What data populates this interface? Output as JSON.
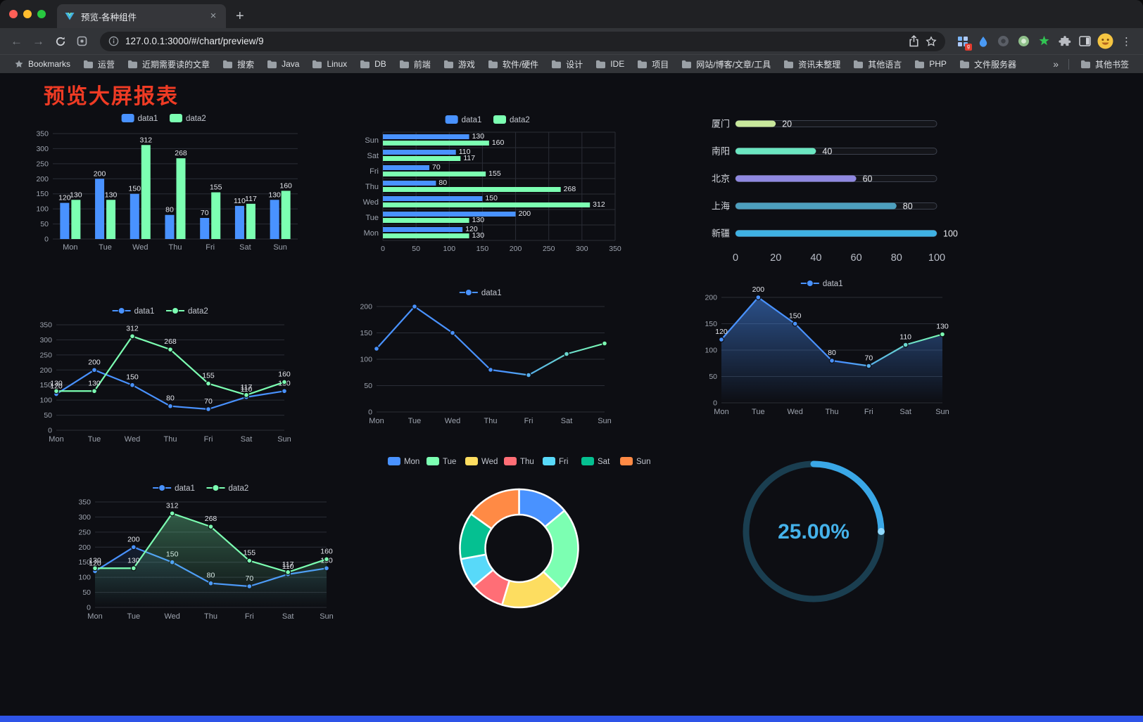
{
  "browser": {
    "tab": {
      "title": "预览-各种组件",
      "close_glyph": "×",
      "new_tab_glyph": "+"
    },
    "toolbar": {
      "back_glyph": "←",
      "forward_glyph": "→",
      "url": "127.0.0.1:3000/#/chart/preview/9",
      "menu_glyph": "⋮",
      "extension_badge": "g"
    },
    "bookmarks_bar": {
      "root_label": "Bookmarks",
      "folders": [
        "运营",
        "近期需要读的文章",
        "搜索",
        "Java",
        "Linux",
        "DB",
        "前端",
        "游戏",
        "软件/硬件",
        "设计",
        "IDE",
        "项目",
        "网站/博客/文章/工具",
        "资讯未整理",
        "其他语言",
        "PHP",
        "文件服务器"
      ],
      "overflow_glyph": "»",
      "other_bookmarks_label": "其他书签"
    }
  },
  "page": {
    "title": "预览大屏报表",
    "title_color": "#ef3b24",
    "background": "#0d0e13",
    "bottom_bar_color": "#2e54e8"
  },
  "chart_data": [
    {
      "id": "grouped-bar",
      "type": "bar",
      "categories": [
        "Mon",
        "Tue",
        "Wed",
        "Thu",
        "Fri",
        "Sat",
        "Sun"
      ],
      "series": [
        {
          "name": "data1",
          "color": "#4992ff",
          "values": [
            120,
            200,
            150,
            80,
            70,
            110,
            130
          ]
        },
        {
          "name": "data2",
          "color": "#7cffb2",
          "values": [
            130,
            130,
            312,
            268,
            155,
            117,
            160
          ]
        }
      ],
      "ylim": [
        0,
        350
      ],
      "yticks": [
        0,
        50,
        100,
        150,
        200,
        250,
        300,
        350
      ],
      "legend_position": "top",
      "grid": true,
      "value_labels": true
    },
    {
      "id": "horizontal-bar",
      "type": "hbar",
      "categories": [
        "Mon",
        "Tue",
        "Wed",
        "Thu",
        "Fri",
        "Sat",
        "Sun"
      ],
      "series": [
        {
          "name": "data1",
          "color": "#4992ff",
          "values": [
            120,
            200,
            150,
            80,
            70,
            110,
            130
          ]
        },
        {
          "name": "data2",
          "color": "#7cffb2",
          "values": [
            130,
            130,
            312,
            268,
            155,
            117,
            160
          ]
        }
      ],
      "xlim": [
        0,
        350
      ],
      "xticks": [
        0,
        50,
        100,
        150,
        200,
        250,
        300,
        350
      ],
      "legend_position": "top",
      "grid": true,
      "value_labels": true
    },
    {
      "id": "capsule-bar",
      "type": "capsule",
      "categories": [
        "厦门",
        "南阳",
        "北京",
        "上海",
        "新疆"
      ],
      "values": [
        20,
        40,
        60,
        80,
        100
      ],
      "colors": [
        "#c8e79b",
        "#6be6c1",
        "#8f88e0",
        "#4d9fbe",
        "#3fb1e3"
      ],
      "xlim": [
        0,
        100
      ],
      "xticks": [
        0,
        20,
        40,
        60,
        80,
        100
      ],
      "value_labels": true
    },
    {
      "id": "line-two-series",
      "type": "line",
      "categories": [
        "Mon",
        "Tue",
        "Wed",
        "Thu",
        "Fri",
        "Sat",
        "Sun"
      ],
      "series": [
        {
          "name": "data1",
          "color": "#4992ff",
          "values": [
            120,
            200,
            150,
            80,
            70,
            110,
            130
          ]
        },
        {
          "name": "data2",
          "color": "#7cffb2",
          "values": [
            130,
            130,
            312,
            268,
            155,
            117,
            160
          ]
        }
      ],
      "ylim": [
        0,
        350
      ],
      "yticks": [
        0,
        50,
        100,
        150,
        200,
        250,
        300,
        350
      ],
      "legend_position": "top",
      "grid": true,
      "value_labels": true
    },
    {
      "id": "gradient-line",
      "type": "line",
      "categories": [
        "Mon",
        "Tue",
        "Wed",
        "Thu",
        "Fri",
        "Sat",
        "Sun"
      ],
      "series": [
        {
          "name": "data1",
          "color": "#4992ff",
          "gradient_to": "#7cffb2",
          "values": [
            120,
            200,
            150,
            80,
            70,
            110,
            130
          ]
        }
      ],
      "ylim": [
        0,
        200
      ],
      "yticks": [
        0,
        50,
        100,
        150,
        200
      ],
      "legend_position": "top",
      "grid": true,
      "value_labels": false
    },
    {
      "id": "area-line",
      "type": "line",
      "categories": [
        "Mon",
        "Tue",
        "Wed",
        "Thu",
        "Fri",
        "Sat",
        "Sun"
      ],
      "series": [
        {
          "name": "data1",
          "color": "#4992ff",
          "gradient_to": "#7cffb2",
          "area": true,
          "area_opacity": 0.5,
          "values": [
            120,
            200,
            150,
            80,
            70,
            110,
            130
          ]
        }
      ],
      "ylim": [
        0,
        200
      ],
      "yticks": [
        0,
        50,
        100,
        150,
        200
      ],
      "legend_position": "top",
      "grid": true,
      "value_labels": true
    },
    {
      "id": "line-area-two-series",
      "type": "line",
      "categories": [
        "Mon",
        "Tue",
        "Wed",
        "Thu",
        "Fri",
        "Sat",
        "Sun"
      ],
      "series": [
        {
          "name": "data1",
          "color": "#4992ff",
          "area": true,
          "area_opacity": 0.12,
          "values": [
            120,
            200,
            150,
            80,
            70,
            110,
            130
          ]
        },
        {
          "name": "data2",
          "color": "#7cffb2",
          "area": true,
          "area_opacity": 0.32,
          "values": [
            130,
            130,
            312,
            268,
            155,
            117,
            160
          ]
        }
      ],
      "ylim": [
        0,
        350
      ],
      "yticks": [
        0,
        50,
        100,
        150,
        200,
        250,
        300,
        350
      ],
      "legend_position": "top",
      "grid": true,
      "value_labels": true
    },
    {
      "id": "doughnut",
      "type": "doughnut",
      "categories": [
        "Mon",
        "Tue",
        "Wed",
        "Thu",
        "Fri",
        "Sat",
        "Sun"
      ],
      "values": [
        120,
        200,
        150,
        80,
        70,
        110,
        130
      ],
      "colors": [
        "#4992ff",
        "#7cffb2",
        "#fddd60",
        "#ff6e76",
        "#58d9f9",
        "#05c091",
        "#ff8a45"
      ],
      "legend_position": "top",
      "border_color": "#ffffff"
    },
    {
      "id": "gauge-progress",
      "type": "gauge",
      "value": 25,
      "max": 100,
      "display": "25.00%",
      "color": "#3aa7e6",
      "track_color": "#1a3e50"
    }
  ]
}
